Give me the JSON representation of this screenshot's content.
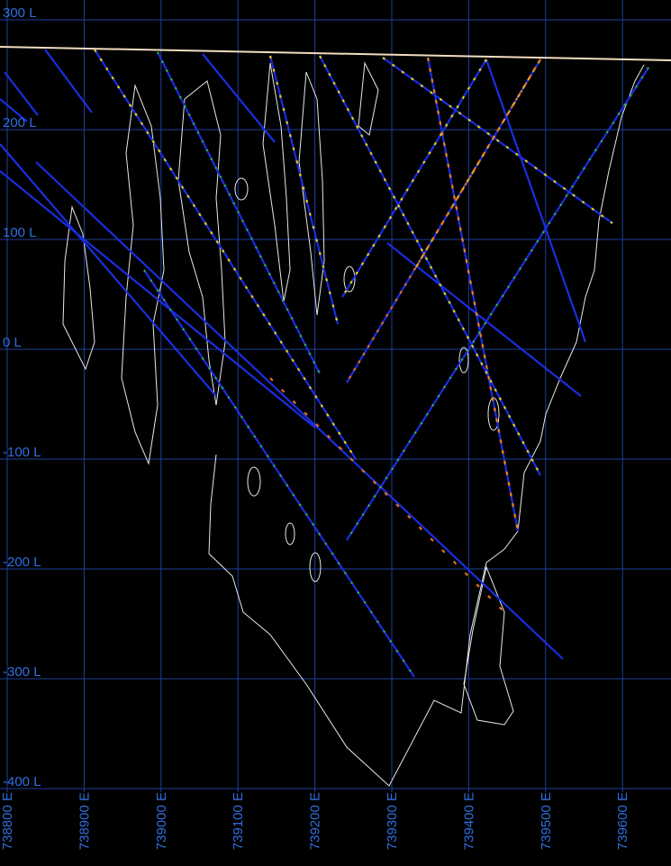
{
  "section": {
    "levels": [
      "300 L",
      "200 L",
      "100 L",
      "0 L",
      "-100 L",
      "-200 L",
      "-300 L",
      "-400 L"
    ],
    "eastings": [
      "738800 E",
      "738900 E",
      "739000 E",
      "739100 E",
      "739200 E",
      "739300 E",
      "739400 E",
      "739500 E",
      "739600 E"
    ]
  }
}
